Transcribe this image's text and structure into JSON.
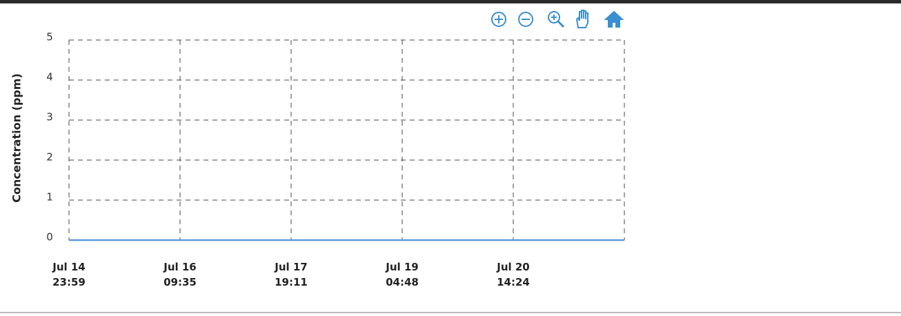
{
  "chart_data": {
    "type": "line",
    "y_label": "Concentration (ppm)",
    "categories": [
      "Jul 14\n23:59",
      "Jul 16\n09:35",
      "Jul 17\n19:11",
      "Jul 19\n04:48",
      "Jul 20\n14:24",
      null
    ],
    "series": [
      {
        "color": "#5b9be0",
        "values": [
          0,
          0,
          0,
          0,
          0,
          0
        ]
      }
    ],
    "ylim": [
      0,
      5
    ],
    "yticks": [
      0,
      1,
      2,
      3,
      4,
      5
    ],
    "grid": true
  }
}
